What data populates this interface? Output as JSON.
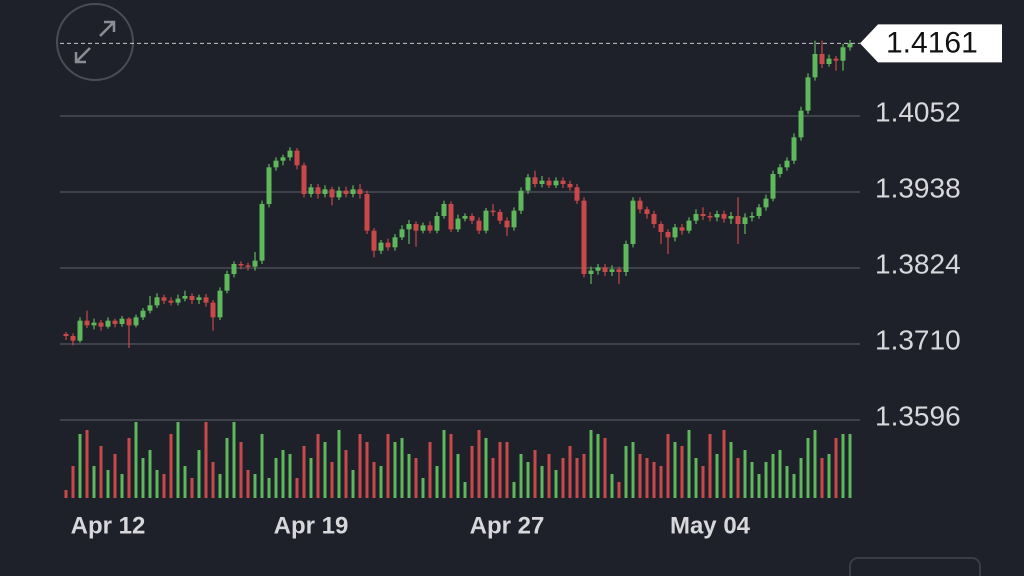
{
  "chart_data": {
    "type": "candlestick",
    "ylim": [
      1.3596,
      1.4196
    ],
    "yticks": [
      1.3596,
      {
        "value": 1.371,
        "label": "1.3710"
      },
      1.3824,
      1.3938,
      1.4052
    ],
    "grid": true,
    "last_price": 1.4161,
    "up_color": "#5fb85c",
    "down_color": "#c9494b",
    "xticks": [
      {
        "value": 6,
        "label": "Apr 12"
      },
      {
        "value": 35,
        "label": "Apr 19"
      },
      {
        "value": 63,
        "label": "Apr 27"
      },
      {
        "value": 92,
        "label": "May 04"
      }
    ],
    "candles": [
      [
        1.3725,
        1.3728,
        1.3716,
        1.3722
      ],
      [
        1.3722,
        1.3726,
        1.3708,
        1.3715
      ],
      [
        1.3715,
        1.375,
        1.3712,
        1.3745
      ],
      [
        1.3745,
        1.376,
        1.3734,
        1.3738
      ],
      [
        1.3738,
        1.3748,
        1.3732,
        1.3742
      ],
      [
        1.3742,
        1.3746,
        1.373,
        1.3736
      ],
      [
        1.3736,
        1.375,
        1.3733,
        1.3745
      ],
      [
        1.3745,
        1.3748,
        1.3735,
        1.374
      ],
      [
        1.374,
        1.3752,
        1.3736,
        1.3748
      ],
      [
        1.3748,
        1.375,
        1.3704,
        1.3738
      ],
      [
        1.3738,
        1.3754,
        1.3735,
        1.375
      ],
      [
        1.375,
        1.3764,
        1.3746,
        1.376
      ],
      [
        1.376,
        1.3782,
        1.3756,
        1.3768
      ],
      [
        1.3768,
        1.3786,
        1.3764,
        1.378
      ],
      [
        1.378,
        1.3784,
        1.377,
        1.3775
      ],
      [
        1.3775,
        1.378,
        1.3768,
        1.3772
      ],
      [
        1.3772,
        1.3784,
        1.3768,
        1.3778
      ],
      [
        1.3778,
        1.379,
        1.3774,
        1.3782
      ],
      [
        1.3782,
        1.3786,
        1.377,
        1.3776
      ],
      [
        1.3776,
        1.3784,
        1.377,
        1.378
      ],
      [
        1.378,
        1.3785,
        1.3766,
        1.3772
      ],
      [
        1.3772,
        1.3776,
        1.373,
        1.375
      ],
      [
        1.375,
        1.3795,
        1.3746,
        1.379
      ],
      [
        1.379,
        1.382,
        1.3786,
        1.3815
      ],
      [
        1.3815,
        1.3834,
        1.381,
        1.383
      ],
      [
        1.383,
        1.3834,
        1.3822,
        1.3828
      ],
      [
        1.3828,
        1.3832,
        1.382,
        1.3826
      ],
      [
        1.3826,
        1.3848,
        1.382,
        1.3835
      ],
      [
        1.3835,
        1.3925,
        1.383,
        1.392
      ],
      [
        1.392,
        1.398,
        1.3915,
        1.3975
      ],
      [
        1.3975,
        1.399,
        1.397,
        1.3985
      ],
      [
        1.3985,
        1.3994,
        1.3978,
        1.399
      ],
      [
        1.399,
        1.4005,
        1.3985,
        1.4
      ],
      [
        1.4,
        1.4004,
        1.3972,
        1.3978
      ],
      [
        1.3978,
        1.3982,
        1.393,
        1.3935
      ],
      [
        1.3935,
        1.395,
        1.393,
        1.3945
      ],
      [
        1.3945,
        1.395,
        1.3928,
        1.3935
      ],
      [
        1.3935,
        1.3948,
        1.393,
        1.3942
      ],
      [
        1.3942,
        1.3946,
        1.3918,
        1.393
      ],
      [
        1.393,
        1.3946,
        1.3926,
        1.394
      ],
      [
        1.394,
        1.3946,
        1.393,
        1.3935
      ],
      [
        1.3935,
        1.3948,
        1.393,
        1.3942
      ],
      [
        1.3942,
        1.395,
        1.3928,
        1.3935
      ],
      [
        1.3935,
        1.394,
        1.3875,
        1.388
      ],
      [
        1.388,
        1.3884,
        1.384,
        1.385
      ],
      [
        1.385,
        1.3866,
        1.3845,
        1.3862
      ],
      [
        1.3862,
        1.3868,
        1.385,
        1.3855
      ],
      [
        1.3855,
        1.3875,
        1.385,
        1.387
      ],
      [
        1.387,
        1.3888,
        1.3866,
        1.3882
      ],
      [
        1.3882,
        1.3896,
        1.386,
        1.389
      ],
      [
        1.389,
        1.3894,
        1.3856,
        1.388
      ],
      [
        1.388,
        1.3892,
        1.3876,
        1.3888
      ],
      [
        1.3888,
        1.3894,
        1.3876,
        1.388
      ],
      [
        1.388,
        1.3908,
        1.3876,
        1.3902
      ],
      [
        1.3902,
        1.3925,
        1.3898,
        1.392
      ],
      [
        1.392,
        1.3924,
        1.3878,
        1.3882
      ],
      [
        1.3882,
        1.3904,
        1.3878,
        1.3898
      ],
      [
        1.3898,
        1.3906,
        1.3894,
        1.3902
      ],
      [
        1.3902,
        1.3906,
        1.389,
        1.3895
      ],
      [
        1.3895,
        1.39,
        1.3875,
        1.388
      ],
      [
        1.388,
        1.3914,
        1.3876,
        1.391
      ],
      [
        1.391,
        1.392,
        1.3902,
        1.3908
      ],
      [
        1.3908,
        1.3912,
        1.389,
        1.3895
      ],
      [
        1.3895,
        1.39,
        1.3872,
        1.3885
      ],
      [
        1.3885,
        1.3915,
        1.388,
        1.391
      ],
      [
        1.391,
        1.3945,
        1.3905,
        1.394
      ],
      [
        1.394,
        1.3965,
        1.3935,
        1.396
      ],
      [
        1.396,
        1.397,
        1.3945,
        1.395
      ],
      [
        1.395,
        1.3962,
        1.3945,
        1.3955
      ],
      [
        1.3955,
        1.396,
        1.3944,
        1.3948
      ],
      [
        1.3948,
        1.396,
        1.3944,
        1.3955
      ],
      [
        1.3955,
        1.396,
        1.3944,
        1.395
      ],
      [
        1.395,
        1.3955,
        1.394,
        1.3945
      ],
      [
        1.3945,
        1.395,
        1.392,
        1.3925
      ],
      [
        1.3925,
        1.393,
        1.381,
        1.3815
      ],
      [
        1.3815,
        1.3826,
        1.38,
        1.382
      ],
      [
        1.382,
        1.383,
        1.3814,
        1.3825
      ],
      [
        1.3825,
        1.383,
        1.3812,
        1.3818
      ],
      [
        1.3818,
        1.3828,
        1.3812,
        1.3822
      ],
      [
        1.3822,
        1.3826,
        1.38,
        1.3818
      ],
      [
        1.3818,
        1.3865,
        1.3812,
        1.386
      ],
      [
        1.386,
        1.393,
        1.3855,
        1.3925
      ],
      [
        1.3925,
        1.393,
        1.3906,
        1.3912
      ],
      [
        1.3912,
        1.3916,
        1.3898,
        1.3905
      ],
      [
        1.3905,
        1.391,
        1.3884,
        1.389
      ],
      [
        1.389,
        1.3894,
        1.386,
        1.3878
      ],
      [
        1.3878,
        1.3882,
        1.3845,
        1.387
      ],
      [
        1.387,
        1.389,
        1.3864,
        1.3885
      ],
      [
        1.3885,
        1.389,
        1.3874,
        1.388
      ],
      [
        1.388,
        1.39,
        1.3876,
        1.3895
      ],
      [
        1.3895,
        1.3912,
        1.389,
        1.3905
      ],
      [
        1.3905,
        1.3915,
        1.3896,
        1.3902
      ],
      [
        1.3902,
        1.3908,
        1.3894,
        1.39
      ],
      [
        1.39,
        1.391,
        1.3894,
        1.3905
      ],
      [
        1.3905,
        1.391,
        1.3892,
        1.3898
      ],
      [
        1.3898,
        1.3908,
        1.389,
        1.3902
      ],
      [
        1.3902,
        1.393,
        1.386,
        1.389
      ],
      [
        1.389,
        1.3906,
        1.3875,
        1.39
      ],
      [
        1.39,
        1.3908,
        1.3894,
        1.3902
      ],
      [
        1.3902,
        1.392,
        1.3898,
        1.3915
      ],
      [
        1.3915,
        1.3934,
        1.391,
        1.3928
      ],
      [
        1.3928,
        1.397,
        1.3924,
        1.3965
      ],
      [
        1.3965,
        1.398,
        1.396,
        1.3975
      ],
      [
        1.3975,
        1.399,
        1.397,
        1.3985
      ],
      [
        1.3985,
        1.4026,
        1.398,
        1.402
      ],
      [
        1.402,
        1.4066,
        1.4015,
        1.406
      ],
      [
        1.406,
        1.4116,
        1.4055,
        1.411
      ],
      [
        1.411,
        1.4165,
        1.4105,
        1.4145
      ],
      [
        1.4145,
        1.4165,
        1.4124,
        1.413
      ],
      [
        1.413,
        1.4144,
        1.4126,
        1.4138
      ],
      [
        1.4138,
        1.4142,
        1.412,
        1.4135
      ],
      [
        1.4135,
        1.416,
        1.412,
        1.4155
      ],
      [
        1.4155,
        1.4166,
        1.415,
        1.4161
      ]
    ],
    "volume": [
      10,
      40,
      80,
      85,
      40,
      65,
      35,
      55,
      30,
      75,
      95,
      50,
      60,
      35,
      30,
      80,
      95,
      40,
      25,
      60,
      95,
      45,
      30,
      75,
      95,
      70,
      35,
      30,
      80,
      25,
      50,
      60,
      55,
      25,
      65,
      50,
      80,
      70,
      45,
      85,
      60,
      35,
      80,
      70,
      45,
      40,
      80,
      70,
      75,
      55,
      50,
      25,
      70,
      40,
      85,
      80,
      55,
      20,
      65,
      85,
      75,
      50,
      70,
      70,
      20,
      55,
      45,
      60,
      40,
      55,
      35,
      50,
      65,
      50,
      55,
      85,
      80,
      75,
      30,
      20,
      65,
      70,
      55,
      50,
      45,
      40,
      80,
      70,
      65,
      85,
      50,
      40,
      80,
      55,
      85,
      70,
      50,
      60,
      45,
      30,
      45,
      55,
      60,
      40,
      30,
      50,
      75,
      85,
      50,
      55,
      75,
      80,
      80
    ],
    "volume_lim": [
      0,
      100
    ]
  }
}
